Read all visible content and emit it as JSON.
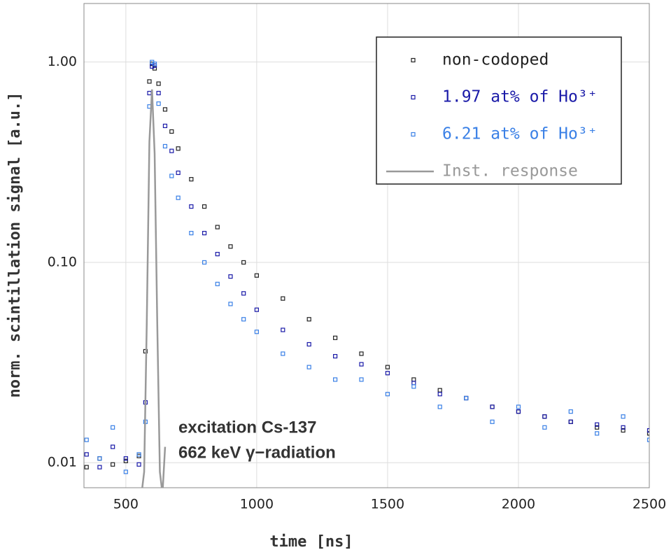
{
  "chart_data": {
    "type": "scatter",
    "xlabel": "time [ns]",
    "ylabel": "norm. scintillation signal [a.u.]",
    "annotations": [
      "excitation Cs-137",
      "662 keV γ−radiation"
    ],
    "log_y": true,
    "grid": true,
    "legend": "upper right",
    "xlim": [
      340,
      2500
    ],
    "ylim": [
      0.0075,
      1.96
    ],
    "xticks": [
      500,
      1000,
      1500,
      2000,
      2500
    ],
    "yticks": [
      {
        "value": 1,
        "label": "1.00"
      },
      {
        "value": 0.1,
        "label": "0.10"
      },
      0.01
    ],
    "x": [
      350,
      400,
      450,
      500,
      550,
      575,
      590,
      600,
      610,
      625,
      650,
      675,
      700,
      750,
      800,
      850,
      900,
      950,
      1000,
      1100,
      1200,
      1300,
      1400,
      1500,
      1600,
      1700,
      1800,
      1900,
      2000,
      2100,
      2200,
      2300,
      2400,
      2500
    ],
    "series": [
      {
        "name": "non-codoped",
        "color": "#222222",
        "marker": "square",
        "values": [
          0.0095,
          0.0105,
          0.0098,
          0.0102,
          0.0108,
          0.036,
          0.8,
          0.98,
          0.93,
          0.78,
          0.58,
          0.45,
          0.37,
          0.26,
          0.19,
          0.15,
          0.12,
          0.1,
          0.086,
          0.066,
          0.052,
          0.042,
          0.035,
          0.03,
          0.026,
          0.023,
          0.021,
          0.019,
          0.018,
          0.017,
          0.016,
          0.015,
          0.0145,
          0.014
        ]
      },
      {
        "name": "1.97 at% of Ho³⁺",
        "color": "#1a1aa8",
        "marker": "square",
        "values": [
          0.011,
          0.0095,
          0.012,
          0.0105,
          0.0098,
          0.02,
          0.7,
          0.95,
          0.96,
          0.7,
          0.48,
          0.36,
          0.28,
          0.19,
          0.14,
          0.11,
          0.085,
          0.07,
          0.058,
          0.046,
          0.039,
          0.034,
          0.031,
          0.028,
          0.025,
          0.022,
          0.021,
          0.019,
          0.018,
          0.017,
          0.016,
          0.0155,
          0.015,
          0.0145
        ]
      },
      {
        "name": "6.21 at% of Ho³⁺",
        "color": "#3a80e6",
        "marker": "square",
        "values": [
          0.013,
          0.0105,
          0.015,
          0.009,
          0.011,
          0.016,
          0.6,
          1.0,
          0.98,
          0.62,
          0.38,
          0.27,
          0.21,
          0.14,
          0.1,
          0.078,
          0.062,
          0.052,
          0.045,
          0.035,
          0.03,
          0.026,
          0.026,
          0.022,
          0.024,
          0.019,
          0.021,
          0.016,
          0.019,
          0.015,
          0.018,
          0.014,
          0.017,
          0.013
        ]
      },
      {
        "name": "Inst. response",
        "color": "#999999",
        "marker": "line",
        "x": [
          560,
          570,
          580,
          590,
          600,
          610,
          620,
          630,
          640,
          650
        ],
        "values": [
          0.007,
          0.009,
          0.05,
          0.4,
          0.73,
          0.35,
          0.05,
          0.009,
          0.007,
          0.012
        ]
      }
    ]
  }
}
